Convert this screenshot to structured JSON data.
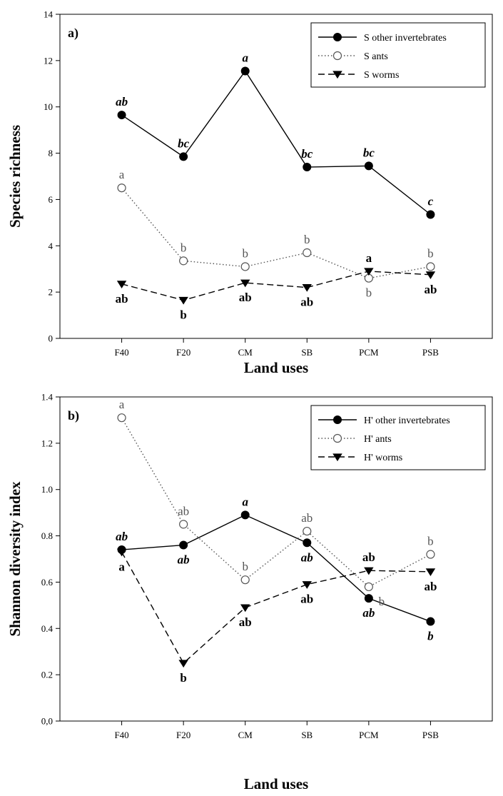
{
  "chart_data": [
    {
      "type": "line",
      "panel_label": "a)",
      "xlabel": "Land uses",
      "ylabel": "Species richness",
      "categories": [
        "F40",
        "F20",
        "CM",
        "SB",
        "PCM",
        "PSB"
      ],
      "ylim": [
        0,
        14
      ],
      "yticks": [
        "0",
        "2",
        "4",
        "6",
        "8",
        "10",
        "12",
        "14"
      ],
      "grid": false,
      "legend_position": "top-right",
      "series": [
        {
          "name": "S other invertebrates",
          "marker": "filled-circle",
          "line": "solid",
          "color": "#000000",
          "values": [
            9.65,
            7.85,
            11.55,
            7.4,
            7.45,
            5.35
          ],
          "letters": [
            "ab",
            "bc",
            "a",
            "bc",
            "bc",
            "c"
          ],
          "letter_pos": [
            "above",
            "above",
            "above",
            "above",
            "above",
            "above"
          ],
          "letter_style": "bold-italic"
        },
        {
          "name": "S ants",
          "marker": "open-circle",
          "line": "dotted",
          "color": "#555555",
          "values": [
            6.5,
            3.35,
            3.1,
            3.7,
            2.6,
            3.1
          ],
          "letters": [
            "a",
            "b",
            "b",
            "b",
            "b",
            "b"
          ],
          "letter_pos": [
            "above",
            "above",
            "above",
            "above",
            "below",
            "above"
          ],
          "letter_style": "normal"
        },
        {
          "name": "S worms",
          "marker": "filled-triangle-down",
          "line": "dashed",
          "color": "#000000",
          "values": [
            2.35,
            1.65,
            2.4,
            2.2,
            2.9,
            2.75
          ],
          "letters": [
            "ab",
            "b",
            "ab",
            "ab",
            "a",
            "ab"
          ],
          "letter_pos": [
            "below",
            "below",
            "below",
            "below",
            "above",
            "below"
          ],
          "letter_style": "bold"
        }
      ]
    },
    {
      "type": "line",
      "panel_label": "b)",
      "xlabel": "Land uses",
      "ylabel": "Shannon diversity index",
      "categories": [
        "F40",
        "F20",
        "CM",
        "SB",
        "PCM",
        "PSB"
      ],
      "ylim": [
        0,
        1.4
      ],
      "yticks": [
        "0,0",
        "0.2",
        "0.4",
        "0.6",
        "0.8",
        "1.0",
        "1.2",
        "1.4"
      ],
      "grid": false,
      "legend_position": "top-right",
      "series": [
        {
          "name": "H' other invertebrates",
          "marker": "filled-circle",
          "line": "solid",
          "color": "#000000",
          "values": [
            0.74,
            0.76,
            0.89,
            0.77,
            0.53,
            0.43
          ],
          "letters": [
            "ab",
            "ab",
            "a",
            "ab",
            "ab",
            "b"
          ],
          "letter_pos": [
            "above",
            "below",
            "above",
            "below",
            "below",
            "below"
          ],
          "letter_style": "bold-italic"
        },
        {
          "name": "H' ants",
          "marker": "open-circle",
          "line": "dotted",
          "color": "#555555",
          "values": [
            1.31,
            0.85,
            0.61,
            0.82,
            0.58,
            0.72
          ],
          "letters": [
            "a",
            "ab",
            "b",
            "ab",
            "b",
            "b"
          ],
          "letter_pos": [
            "above",
            "above",
            "above",
            "above",
            "below-right",
            "above"
          ],
          "letter_style": "normal"
        },
        {
          "name": "H' worms",
          "marker": "filled-triangle-down",
          "line": "dashed",
          "color": "#000000",
          "values": [
            0.73,
            0.25,
            0.49,
            0.59,
            0.65,
            0.645
          ],
          "letters": [
            "a",
            "b",
            "ab",
            "ab",
            "ab",
            "ab"
          ],
          "letter_pos": [
            "below",
            "below",
            "below",
            "below",
            "above",
            "below"
          ],
          "letter_style": "bold"
        }
      ]
    }
  ]
}
